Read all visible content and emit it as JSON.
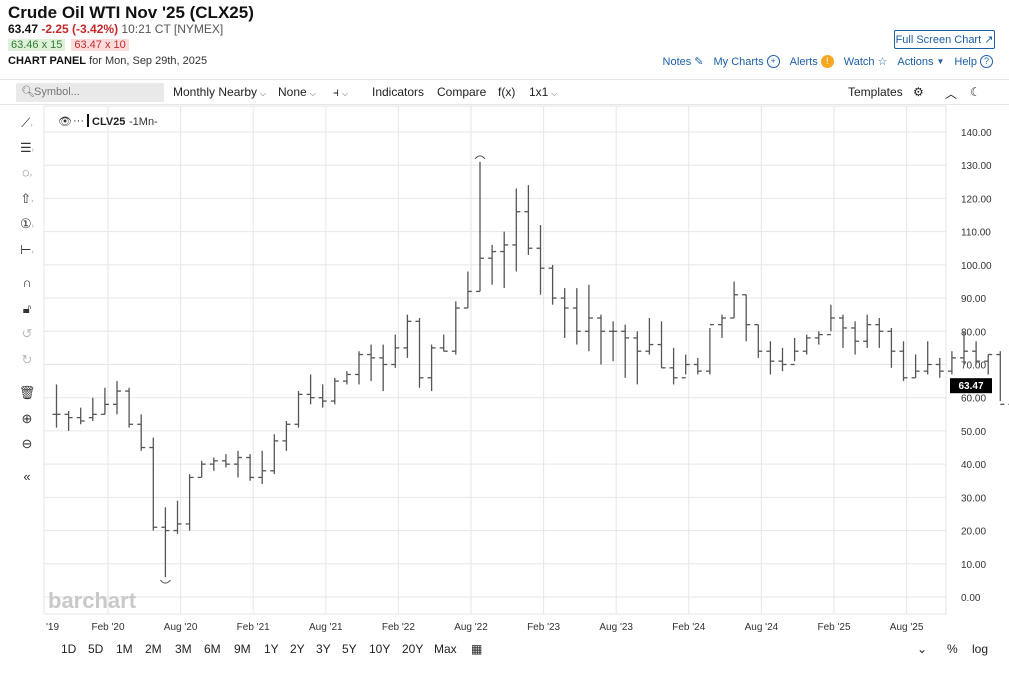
{
  "header": {
    "title": "Crude Oil WTI Nov '25 (CLX25)",
    "last": "63.47",
    "change": "-2.25 (-3.42%)",
    "time": "10:21 CT [NYMEX]",
    "bid": "63.46 x 15",
    "ask": "63.47 x 10",
    "panel_label": "CHART PANEL",
    "panel_date": "for Mon, Sep 29th, 2025",
    "fullscreen": "Full Screen Chart ↗"
  },
  "links": {
    "notes": "Notes",
    "mycharts": "My Charts",
    "alerts": "Alerts",
    "watch": "Watch",
    "actions": "Actions",
    "help": "Help"
  },
  "toolbar": {
    "symbol_placeholder": "Symbol...",
    "period": "Monthly Nearby",
    "study": "None",
    "indicators": "Indicators",
    "compare": "Compare",
    "fx": "f(x)",
    "layout": "1x1",
    "templates": "Templates"
  },
  "legend": {
    "symbol": "CLV25",
    "interval": "-1Mn-"
  },
  "watermark": "barchart",
  "price_tag": "63.47",
  "colors": {
    "bar": "#555555",
    "grid": "#e6e6e6",
    "link": "#1b5fa6",
    "down": "#c62828"
  },
  "ranges": [
    "1D",
    "5D",
    "1M",
    "2M",
    "3M",
    "6M",
    "9M",
    "1Y",
    "2Y",
    "3Y",
    "5Y",
    "10Y",
    "20Y",
    "Max"
  ],
  "bottom_right": {
    "percent": "%",
    "log": "log"
  },
  "chart_data": {
    "type": "ohlc-bar",
    "interval": "monthly",
    "y_ticks": [
      "0.00",
      "10.00",
      "20.00",
      "30.00",
      "40.00",
      "50.00",
      "60.00",
      "70.00",
      "80.00",
      "90.00",
      "100.00",
      "110.00",
      "120.00",
      "130.00",
      "140.00"
    ],
    "ylim": [
      0,
      140
    ],
    "x_ticks": [
      "'19",
      "Feb '20",
      "Aug '20",
      "Feb '21",
      "Aug '21",
      "Feb '22",
      "Aug '22",
      "Feb '23",
      "Aug '23",
      "Feb '24",
      "Aug '24",
      "Feb '25",
      "Aug '25"
    ],
    "start": "2019-11",
    "bars": [
      [
        55,
        64,
        51,
        55
      ],
      [
        55,
        56,
        50,
        54
      ],
      [
        54,
        57,
        52,
        53
      ],
      [
        54,
        60,
        53,
        55
      ],
      [
        55,
        63,
        55,
        58
      ],
      [
        58,
        65,
        55,
        62
      ],
      [
        62,
        63,
        51,
        52
      ],
      [
        52,
        55,
        44,
        45
      ],
      [
        45,
        48,
        20,
        21
      ],
      [
        21,
        27,
        6,
        20
      ],
      [
        20,
        29,
        19,
        22
      ],
      [
        22,
        37,
        20,
        36
      ],
      [
        36,
        41,
        36,
        40
      ],
      [
        40,
        42,
        38,
        41
      ],
      [
        41,
        43,
        39,
        40
      ],
      [
        40,
        44,
        36,
        42
      ],
      [
        42,
        43,
        35,
        36
      ],
      [
        36,
        44,
        34,
        38
      ],
      [
        38,
        49,
        37,
        47
      ],
      [
        47,
        53,
        44,
        52
      ],
      [
        52,
        62,
        51,
        61
      ],
      [
        61,
        67,
        58,
        60
      ],
      [
        60,
        64,
        57,
        59
      ],
      [
        59,
        66,
        58,
        65
      ],
      [
        65,
        68,
        64,
        67
      ],
      [
        67,
        74,
        64,
        73
      ],
      [
        73,
        76,
        65,
        72
      ],
      [
        72,
        76,
        62,
        70
      ],
      [
        70,
        79,
        69,
        75
      ],
      [
        75,
        85,
        72,
        83
      ],
      [
        83,
        84,
        63,
        66
      ],
      [
        66,
        76,
        62,
        75
      ],
      [
        75,
        79,
        74,
        74
      ],
      [
        74,
        89,
        73,
        87
      ],
      [
        87,
        98,
        87,
        92
      ],
      [
        92,
        131,
        92,
        102
      ],
      [
        102,
        106,
        94,
        104
      ],
      [
        104,
        110,
        93,
        106
      ],
      [
        106,
        123,
        98,
        116
      ],
      [
        116,
        124,
        103,
        105
      ],
      [
        105,
        112,
        91,
        99
      ],
      [
        99,
        100,
        88,
        90
      ],
      [
        90,
        93,
        78,
        87
      ],
      [
        87,
        93,
        76,
        80
      ],
      [
        80,
        94,
        74,
        84
      ],
      [
        84,
        85,
        70,
        80
      ],
      [
        80,
        83,
        71,
        80
      ],
      [
        80,
        82,
        66,
        78
      ],
      [
        78,
        80,
        64,
        74
      ],
      [
        74,
        84,
        73,
        76
      ],
      [
        76,
        83,
        69,
        69
      ],
      [
        69,
        75,
        64,
        66
      ],
      [
        66,
        73,
        67,
        70
      ],
      [
        70,
        72,
        67,
        68
      ],
      [
        68,
        81,
        67,
        82
      ],
      [
        82,
        85,
        78,
        84
      ],
      [
        84,
        95,
        84,
        91
      ],
      [
        91,
        91,
        77,
        82
      ],
      [
        82,
        82,
        72,
        74
      ],
      [
        74,
        77,
        67,
        71
      ],
      [
        71,
        75,
        68,
        70
      ],
      [
        70,
        78,
        71,
        74
      ],
      [
        74,
        79,
        73,
        78
      ],
      [
        78,
        80,
        76,
        79
      ],
      [
        79,
        88,
        80,
        84
      ],
      [
        84,
        85,
        75,
        81
      ],
      [
        81,
        83,
        73,
        77
      ],
      [
        77,
        85,
        75,
        82
      ],
      [
        82,
        84,
        75,
        80
      ],
      [
        80,
        81,
        69,
        74
      ],
      [
        74,
        77,
        65,
        66
      ],
      [
        66,
        73,
        66,
        68
      ],
      [
        68,
        77,
        67,
        70
      ],
      [
        70,
        72,
        66,
        68
      ],
      [
        68,
        74,
        67,
        72
      ],
      [
        72,
        80,
        70,
        74
      ],
      [
        74,
        77,
        70,
        71
      ],
      [
        71,
        73,
        67,
        73
      ],
      [
        73,
        74,
        59,
        58
      ],
      [
        58,
        62,
        55,
        60
      ],
      [
        60,
        64,
        57,
        65
      ],
      [
        65,
        79,
        66,
        70
      ],
      [
        70,
        70,
        61,
        66
      ],
      [
        66,
        70,
        61,
        64
      ],
      [
        64,
        66,
        62,
        63.47
      ]
    ],
    "last": 63.47
  }
}
